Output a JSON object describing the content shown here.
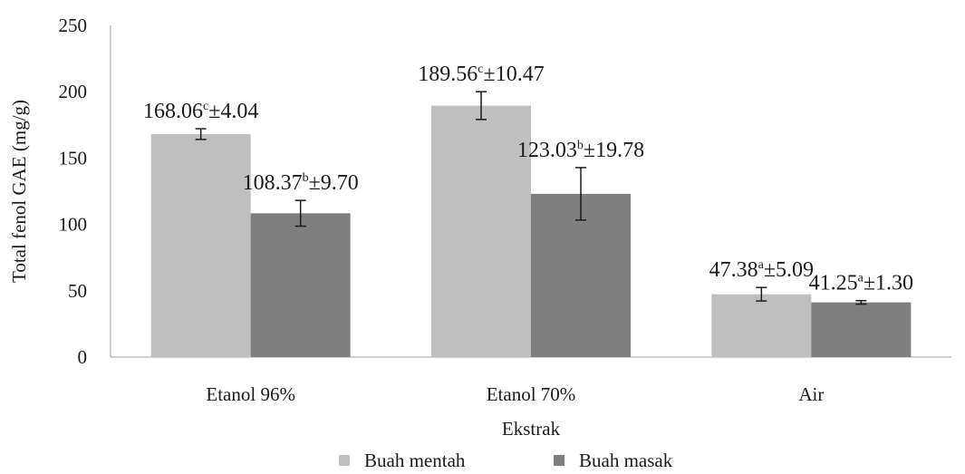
{
  "chart_data": {
    "type": "bar",
    "title": "",
    "xlabel": "Ekstrak",
    "ylabel": "Total fenol GAE (mg/g)",
    "ylim": [
      0,
      250
    ],
    "yticks": [
      "0",
      "50",
      "100",
      "150",
      "200",
      "250"
    ],
    "grid": false,
    "legend_position": "bottom",
    "categories": [
      "Etanol 96%",
      "Etanol 70%",
      "Air"
    ],
    "series": [
      {
        "name": "Buah mentah",
        "color": "#bfbfbf",
        "values": [
          168.06,
          189.56,
          47.38
        ],
        "errors": [
          4.04,
          10.47,
          5.09
        ],
        "letters": [
          "c",
          "c",
          "a"
        ],
        "labels": [
          {
            "value": "168.06",
            "letter": "c",
            "error": "±4.04"
          },
          {
            "value": "189.56",
            "letter": "c",
            "error": "±10.47"
          },
          {
            "value": "47.38",
            "letter": "a",
            "error": "±5.09"
          }
        ]
      },
      {
        "name": "Buah masak",
        "color": "#7f7f7f",
        "values": [
          108.37,
          123.03,
          41.25
        ],
        "errors": [
          9.7,
          19.78,
          1.3
        ],
        "letters": [
          "b",
          "b",
          "a"
        ],
        "labels": [
          {
            "value": "108.37",
            "letter": "b",
            "error": "±9.70"
          },
          {
            "value": "123.03",
            "letter": "b",
            "error": "±19.78"
          },
          {
            "value": "41.25",
            "letter": "a",
            "error": "±1.30"
          }
        ]
      }
    ]
  }
}
